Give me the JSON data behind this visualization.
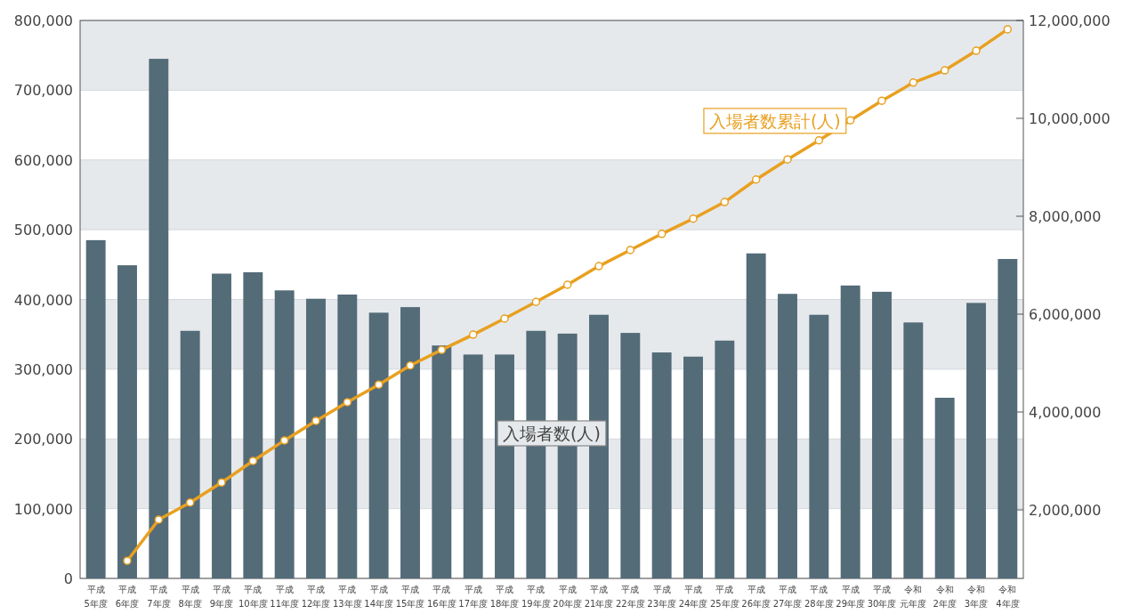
{
  "chart_data": {
    "type": "bar",
    "categories": [
      "平成5年度",
      "平成6年度",
      "平成7年度",
      "平成8年度",
      "平成9年度",
      "平成10年度",
      "平成11年度",
      "平成12年度",
      "平成13年度",
      "平成14年度",
      "平成15年度",
      "平成16年度",
      "平成17年度",
      "平成18年度",
      "平成19年度",
      "平成20年度",
      "平成21年度",
      "平成22年度",
      "平成23年度",
      "平成24年度",
      "平成25年度",
      "平成26年度",
      "平成27年度",
      "平成28年度",
      "平成29年度",
      "平成30年度",
      "令和元年度",
      "令和2年度",
      "令和3年度",
      "令和4年度"
    ],
    "series": [
      {
        "name": "入場者数(人)",
        "color": "#546b78",
        "values": [
          485000,
          449000,
          745000,
          355000,
          437000,
          439000,
          413000,
          401000,
          407000,
          381000,
          389000,
          334000,
          321000,
          321000,
          355000,
          351000,
          378000,
          352000,
          324000,
          318000,
          341000,
          466000,
          408000,
          378000,
          420000,
          411000,
          367000,
          259000,
          395000,
          458000
        ]
      },
      {
        "name": "入場者数累計(人)",
        "type": "line",
        "axis": "y2",
        "color": "#e8a020",
        "marker": "circle",
        "values": [
          null,
          960000,
          1800000,
          2150000,
          2560000,
          3000000,
          3420000,
          3820000,
          4200000,
          4560000,
          4950000,
          5270000,
          5580000,
          5910000,
          6250000,
          6600000,
          6980000,
          7310000,
          7640000,
          7950000,
          8290000,
          8750000,
          9160000,
          9550000,
          9960000,
          10360000,
          10730000,
          10980000,
          11380000,
          11820000
        ]
      }
    ],
    "ylim": [
      0,
      800000
    ],
    "yticks": [
      0,
      {
        "value": 100000,
        "label": "100,000"
      },
      {
        "value": 200000,
        "label": "200,000"
      },
      {
        "value": 300000,
        "label": "300,000"
      },
      {
        "value": 400000,
        "label": "400,000"
      },
      {
        "value": 500000,
        "label": "500,000"
      },
      {
        "value": 600000,
        "label": "600,000"
      },
      {
        "value": 700000,
        "label": "700,000"
      },
      {
        "value": 800000,
        "label": "800,000"
      }
    ],
    "y2lim": [
      600000,
      12000000
    ],
    "y2ticks": [
      {
        "value": 2000000,
        "label": "2,000,000"
      },
      {
        "value": 4000000,
        "label": "4,000,000"
      },
      {
        "value": 6000000,
        "label": "6,000,000"
      },
      {
        "value": 8000000,
        "label": "8,000,000"
      },
      {
        "value": 10000000,
        "label": "10,000,000"
      },
      {
        "value": 12000000,
        "label": "12,000,000"
      }
    ],
    "grid": "y"
  }
}
